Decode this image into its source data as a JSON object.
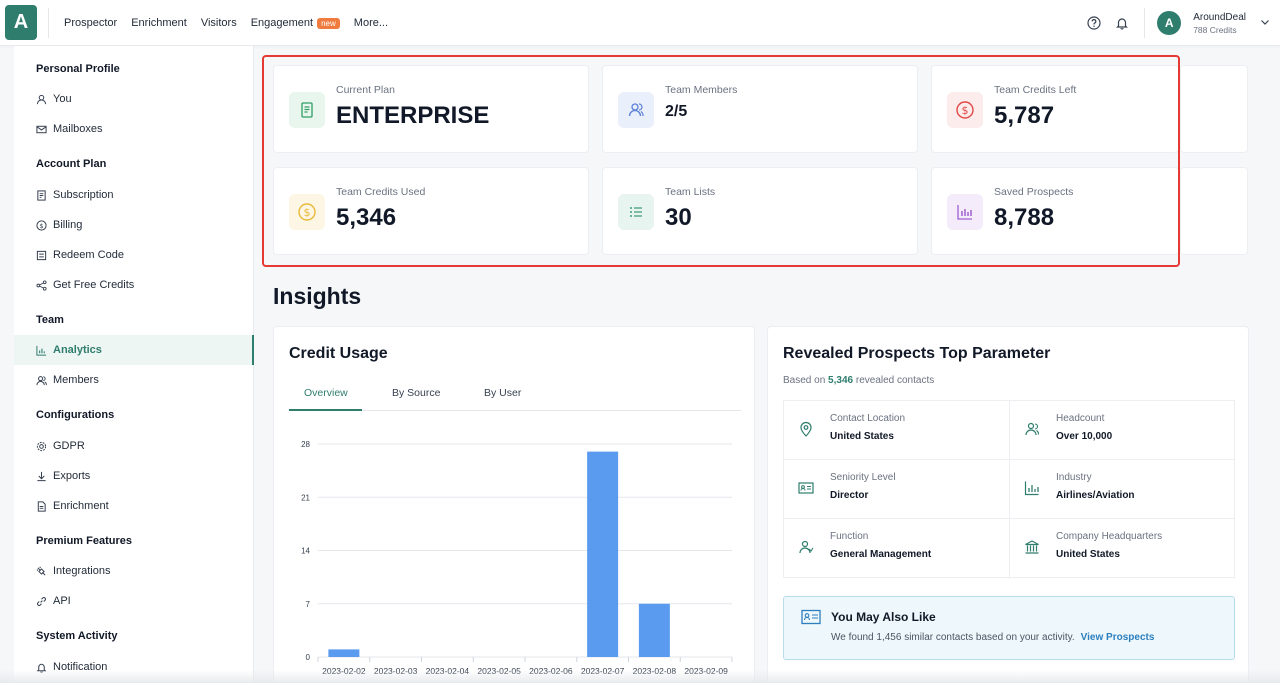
{
  "logo": {
    "letter": "A"
  },
  "nav": {
    "items": [
      "Prospector",
      "Enrichment",
      "Visitors",
      "Engagement",
      "More..."
    ],
    "engagement_badge": "new"
  },
  "user": {
    "initial": "A",
    "name": "AroundDeal",
    "credits": "788 Credits"
  },
  "sidebar": {
    "sections": [
      "Personal Profile",
      "Account Plan",
      "Team",
      "Configurations",
      "Premium Features",
      "System Activity"
    ],
    "items": [
      "You",
      "Mailboxes",
      "Subscription",
      "Billing",
      "Redeem Code",
      "Get Free Credits",
      "Analytics",
      "Members",
      "GDPR",
      "Exports",
      "Enrichment",
      "Integrations",
      "API",
      "Notification"
    ],
    "active": "Analytics"
  },
  "stats": [
    {
      "label": "Current Plan",
      "value": "ENTERPRISE",
      "icon": "document-icon",
      "color": "#2f9e63"
    },
    {
      "label": "Team Members",
      "value": "2/5",
      "icon": "users-icon",
      "color": "#5b7fd6"
    },
    {
      "label": "Team Credits Left",
      "value": "5,787",
      "icon": "dollar-circle-icon",
      "color": "#e04848"
    },
    {
      "label": "Team Credits Used",
      "value": "5,346",
      "icon": "coin-icon",
      "color": "#e8b93a"
    },
    {
      "label": "Team Lists",
      "value": "30",
      "icon": "list-icon",
      "color": "#3f9e7a"
    },
    {
      "label": "Saved Prospects",
      "value": "8,788",
      "icon": "bar-chart-icon",
      "color": "#a05fd0"
    }
  ],
  "insights": {
    "title": "Insights"
  },
  "credit_usage": {
    "title": "Credit Usage",
    "tabs": [
      "Overview",
      "By Source",
      "By User"
    ],
    "active_tab": "Overview"
  },
  "chart_data": {
    "type": "bar",
    "categories": [
      "2023-02-02",
      "2023-02-03",
      "2023-02-04",
      "2023-02-05",
      "2023-02-06",
      "2023-02-07",
      "2023-02-08",
      "2023-02-09"
    ],
    "values": [
      1,
      0,
      0,
      0,
      0,
      27,
      7,
      0
    ],
    "yticks": [
      0,
      7,
      14,
      21,
      28
    ],
    "ylim": [
      0,
      28
    ],
    "color": "#5b9bef"
  },
  "revealed": {
    "title": "Revealed Prospects Top Parameter",
    "based_prefix": "Based on",
    "based_count": "5,346",
    "based_suffix": "revealed contacts",
    "params": [
      {
        "label": "Contact Location",
        "value": "United States",
        "icon": "location-pin-icon"
      },
      {
        "label": "Headcount",
        "value": "Over 10,000",
        "icon": "people-icon"
      },
      {
        "label": "Seniority Level",
        "value": "Director",
        "icon": "id-card-icon"
      },
      {
        "label": "Industry",
        "value": "Airlines/Aviation",
        "icon": "bar-chart-icon"
      },
      {
        "label": "Function",
        "value": "General Management",
        "icon": "user-icon"
      },
      {
        "label": "Company Headquarters",
        "value": "United States",
        "icon": "bank-icon"
      }
    ]
  },
  "may_like": {
    "title": "You May Also Like",
    "text": "We found 1,456 similar contacts based on your activity.",
    "link": "View Prospects"
  }
}
